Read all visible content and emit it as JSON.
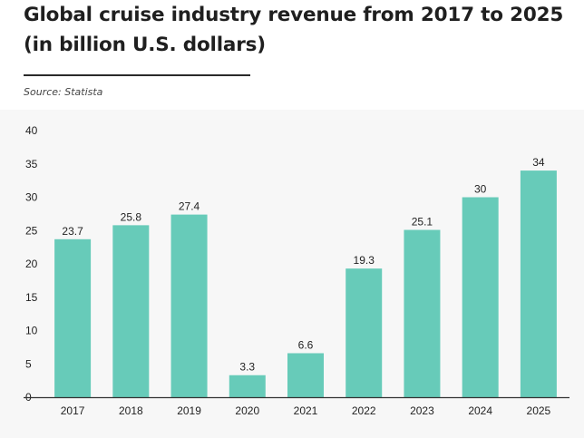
{
  "header": {
    "title_line1": "Global cruise industry revenue from 2017 to 2025",
    "title_line2": "(in billion U.S. dollars)",
    "source": "Source: Statista"
  },
  "colors": {
    "bar": "#67cbb9",
    "axis": "#333333",
    "panel": "#f7f7f7"
  },
  "chart_data": {
    "type": "bar",
    "title": "Global cruise industry revenue from 2017 to 2025 (in billion U.S. dollars)",
    "xlabel": "",
    "ylabel": "",
    "categories": [
      "2017",
      "2018",
      "2019",
      "2020",
      "2021",
      "2022",
      "2023",
      "2024",
      "2025"
    ],
    "values": [
      23.7,
      25.8,
      27.4,
      3.3,
      6.6,
      19.3,
      25.1,
      30,
      34
    ],
    "value_labels": [
      "23.7",
      "25.8",
      "27.4",
      "3.3",
      "6.6",
      "19.3",
      "25.1",
      "30",
      "34"
    ],
    "ylim": [
      0,
      40
    ],
    "yticks": [
      0,
      5,
      10,
      15,
      20,
      25,
      30,
      35,
      40
    ],
    "grid": false,
    "legend": "none"
  }
}
